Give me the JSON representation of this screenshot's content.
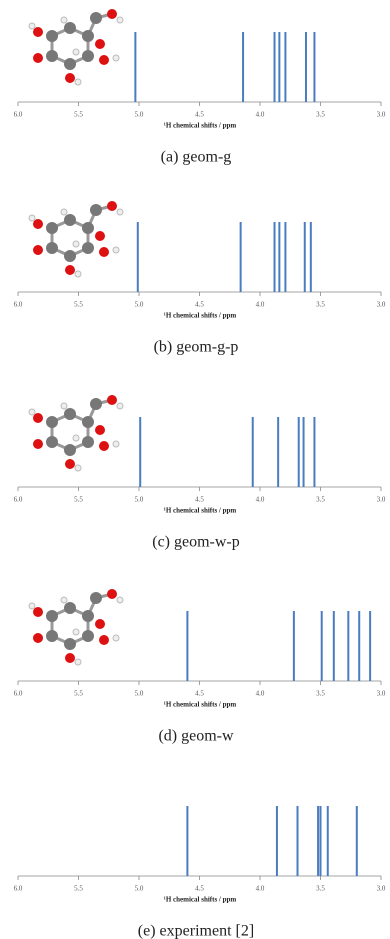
{
  "chart_data": [
    {
      "type": "stick",
      "caption": "(a) geom-g",
      "xlabel": "¹H chemical shifts / ppm",
      "color": "#4a7cc0",
      "xlim": [
        6,
        3
      ],
      "xticks": [
        {
          "value": 6,
          "label": "6.0"
        },
        5.5,
        {
          "value": 5,
          "label": "5.0"
        },
        4.5,
        {
          "value": 4,
          "label": "4.0"
        },
        3.5,
        {
          "value": 3,
          "label": "3.0"
        }
      ],
      "values": [
        5.03,
        4.14,
        3.88,
        3.84,
        3.79,
        3.62,
        3.55
      ]
    },
    {
      "type": "stick",
      "caption": "(b) geom-g-p",
      "xlabel": "¹H chemical shifts / ppm",
      "color": "#4a7cc0",
      "xlim": [
        6,
        3
      ],
      "xticks": [
        {
          "value": 6,
          "label": "6.0"
        },
        5.5,
        {
          "value": 5,
          "label": "5.0"
        },
        4.5,
        {
          "value": 4,
          "label": "4.0"
        },
        3.5,
        {
          "value": 3,
          "label": "3.0"
        }
      ],
      "values": [
        5.01,
        4.16,
        3.88,
        3.84,
        3.79,
        3.63,
        3.58
      ]
    },
    {
      "type": "stick",
      "caption": "(c) geom-w-p",
      "xlabel": "¹H chemical shifts / ppm",
      "color": "#4a7cc0",
      "xlim": [
        6,
        3
      ],
      "xticks": [
        {
          "value": 6,
          "label": "6.0"
        },
        5.5,
        {
          "value": 5,
          "label": "5.0"
        },
        4.5,
        {
          "value": 4,
          "label": "4.0"
        },
        3.5,
        {
          "value": 3,
          "label": "3.0"
        }
      ],
      "values": [
        4.99,
        4.06,
        3.85,
        3.68,
        3.64,
        3.55
      ]
    },
    {
      "type": "stick",
      "caption": "(d) geom-w",
      "xlabel": "¹H chemical shifts / ppm",
      "color": "#4a7cc0",
      "xlim": [
        6,
        3
      ],
      "xticks": [
        {
          "value": 6,
          "label": "6.0"
        },
        5.5,
        {
          "value": 5,
          "label": "5.0"
        },
        4.5,
        {
          "value": 4,
          "label": "4.0"
        },
        3.5,
        {
          "value": 3,
          "label": "3.0"
        }
      ],
      "values": [
        4.6,
        3.72,
        3.49,
        3.39,
        3.27,
        3.18,
        3.09
      ]
    },
    {
      "type": "stick",
      "caption": "(e) experiment [2]",
      "xlabel": "¹H chemical shifts / ppm",
      "color": "#4a7cc0",
      "xlim": [
        6,
        3
      ],
      "xticks": [
        {
          "value": 6,
          "label": "6.0"
        },
        5.5,
        {
          "value": 5,
          "label": "5.0"
        },
        4.5,
        {
          "value": 4,
          "label": "4.0"
        },
        3.5,
        {
          "value": 3,
          "label": "3.0"
        }
      ],
      "values": [
        4.6,
        3.86,
        3.69,
        3.52,
        3.5,
        3.44,
        3.2
      ]
    }
  ]
}
